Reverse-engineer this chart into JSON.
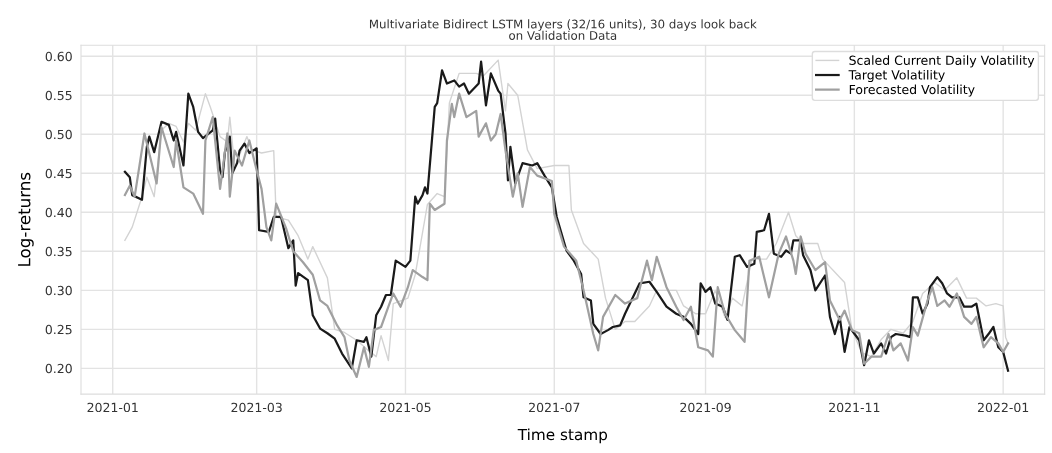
{
  "chart_data": {
    "type": "line",
    "title": "Multivariate Bidirect LSTM layers (32/16 units), 30 days look back\non Validation Data",
    "xlabel": "Time stamp",
    "ylabel": "Log-returns",
    "xlim": [
      "2020-12-19",
      "2022-01-18"
    ],
    "ylim": [
      0.167,
      0.614
    ],
    "xticks": [
      "2021-01",
      "2021-03",
      "2021-05",
      "2021-07",
      "2021-09",
      "2021-11",
      "2022-01"
    ],
    "yticks": [
      {
        "value": 0.2,
        "label": "0.20"
      },
      0.25,
      {
        "value": 0.3,
        "label": "0.30"
      },
      0.35,
      {
        "value": 0.4,
        "label": "0.40"
      },
      0.45,
      {
        "value": 0.5,
        "label": "0.50"
      },
      0.55,
      {
        "value": 0.6,
        "label": "0.60"
      }
    ],
    "grid": true,
    "legend": "top right",
    "line_style": "solid",
    "marker": "none",
    "series": [
      {
        "name": "Scaled Current Daily Volatility",
        "color": "#d3d3d3",
        "x": [
          "2021-01-06",
          "2021-01-09",
          "2021-01-13",
          "2021-01-15",
          "2021-01-18",
          "2021-01-21",
          "2021-01-24",
          "2021-01-27",
          "2021-01-30",
          "2021-02-01",
          "2021-02-04",
          "2021-02-08",
          "2021-02-10",
          "2021-02-14",
          "2021-02-17",
          "2021-02-18",
          "2021-02-20",
          "2021-02-25",
          "2021-02-27",
          "2021-03-03",
          "2021-03-08",
          "2021-03-09",
          "2021-03-14",
          "2021-03-18",
          "2021-03-22",
          "2021-03-24",
          "2021-03-30",
          "2021-04-02",
          "2021-04-06",
          "2021-04-11",
          "2021-04-15",
          "2021-04-19",
          "2021-04-21",
          "2021-04-24",
          "2021-04-26",
          "2021-05-02",
          "2021-05-05",
          "2021-05-10",
          "2021-05-14",
          "2021-05-17",
          "2021-05-19",
          "2021-05-23",
          "2021-05-30",
          "2021-06-02",
          "2021-06-08",
          "2021-06-11",
          "2021-06-12",
          "2021-06-16",
          "2021-06-20",
          "2021-06-24",
          "2021-07-01",
          "2021-07-07",
          "2021-07-08",
          "2021-07-13",
          "2021-07-19",
          "2021-07-22",
          "2021-07-26",
          "2021-07-30",
          "2021-08-03",
          "2021-08-09",
          "2021-08-12",
          "2021-08-20",
          "2021-08-23",
          "2021-08-28",
          "2021-09-01",
          "2021-09-05",
          "2021-09-09",
          "2021-09-12",
          "2021-09-16",
          "2021-09-20",
          "2021-09-26",
          "2021-09-30",
          "2021-10-05",
          "2021-10-08",
          "2021-10-11",
          "2021-10-17",
          "2021-10-19",
          "2021-10-25",
          "2021-10-28",
          "2021-10-31",
          "2021-11-04",
          "2021-11-08",
          "2021-11-12",
          "2021-11-16",
          "2021-11-21",
          "2021-11-25",
          "2021-11-29",
          "2021-12-04",
          "2021-12-08",
          "2021-12-13",
          "2021-12-17",
          "2021-12-21",
          "2021-12-25",
          "2021-12-29",
          "2022-01-01",
          "2022-01-02",
          "2022-01-03"
        ],
        "values": [
          0.364,
          0.381,
          0.42,
          0.445,
          0.42,
          0.505,
          0.514,
          0.51,
          0.49,
          0.514,
          0.505,
          0.552,
          0.535,
          0.497,
          0.49,
          0.522,
          0.458,
          0.497,
          0.48,
          0.476,
          0.479,
          0.394,
          0.39,
          0.37,
          0.34,
          0.356,
          0.316,
          0.25,
          0.246,
          0.236,
          0.225,
          0.215,
          0.242,
          0.21,
          0.283,
          0.29,
          0.32,
          0.41,
          0.424,
          0.42,
          0.54,
          0.578,
          0.578,
          0.575,
          0.595,
          0.53,
          0.565,
          0.55,
          0.48,
          0.456,
          0.46,
          0.46,
          0.403,
          0.36,
          0.34,
          0.29,
          0.25,
          0.26,
          0.26,
          0.28,
          0.3,
          0.3,
          0.28,
          0.27,
          0.27,
          0.3,
          0.265,
          0.29,
          0.28,
          0.34,
          0.34,
          0.36,
          0.4,
          0.37,
          0.36,
          0.36,
          0.34,
          0.32,
          0.31,
          0.25,
          0.22,
          0.215,
          0.237,
          0.25,
          0.245,
          0.26,
          0.296,
          0.31,
          0.3,
          0.316,
          0.29,
          0.29,
          0.28,
          0.283,
          0.28,
          0.24,
          0.232
        ]
      },
      {
        "name": "Target Volatility",
        "color": "#1a1a1a",
        "x": [
          "2021-01-06",
          "2021-01-08",
          "2021-01-09",
          "2021-01-13",
          "2021-01-15",
          "2021-01-16",
          "2021-01-18",
          "2021-01-21",
          "2021-01-24",
          "2021-01-26",
          "2021-01-27",
          "2021-01-30",
          "2021-02-01",
          "2021-02-03",
          "2021-02-05",
          "2021-02-07",
          "2021-02-11",
          "2021-02-12",
          "2021-02-14",
          "2021-02-15",
          "2021-02-16",
          "2021-02-18",
          "2021-02-19",
          "2021-02-21",
          "2021-02-22",
          "2021-02-24",
          "2021-02-26",
          "2021-03-01",
          "2021-03-02",
          "2021-03-06",
          "2021-03-08",
          "2021-03-11",
          "2021-03-14",
          "2021-03-16",
          "2021-03-17",
          "2021-03-18",
          "2021-03-22",
          "2021-03-24",
          "2021-03-27",
          "2021-03-30",
          "2021-04-02",
          "2021-04-05",
          "2021-04-09",
          "2021-04-11",
          "2021-04-14",
          "2021-04-15",
          "2021-04-17",
          "2021-04-19",
          "2021-04-21",
          "2021-04-23",
          "2021-04-25",
          "2021-04-27",
          "2021-05-01",
          "2021-05-03",
          "2021-05-05",
          "2021-05-06",
          "2021-05-08",
          "2021-05-09",
          "2021-05-10",
          "2021-05-13",
          "2021-05-14",
          "2021-05-16",
          "2021-05-18",
          "2021-05-21",
          "2021-05-23",
          "2021-05-25",
          "2021-05-27",
          "2021-05-31",
          "2021-06-01",
          "2021-06-03",
          "2021-06-05",
          "2021-06-08",
          "2021-06-09",
          "2021-06-11",
          "2021-06-12",
          "2021-06-13",
          "2021-06-15",
          "2021-06-18",
          "2021-06-22",
          "2021-06-24",
          "2021-06-27",
          "2021-06-30",
          "2021-07-02",
          "2021-07-06",
          "2021-07-09",
          "2021-07-12",
          "2021-07-13",
          "2021-07-16",
          "2021-07-17",
          "2021-07-20",
          "2021-07-23",
          "2021-07-25",
          "2021-07-28",
          "2021-07-30",
          "2021-08-01",
          "2021-08-05",
          "2021-08-09",
          "2021-08-12",
          "2021-08-16",
          "2021-08-20",
          "2021-08-23",
          "2021-08-26",
          "2021-08-29",
          "2021-08-30",
          "2021-09-01",
          "2021-09-03",
          "2021-09-05",
          "2021-09-08",
          "2021-09-10",
          "2021-09-13",
          "2021-09-15",
          "2021-09-18",
          "2021-09-21",
          "2021-09-22",
          "2021-09-25",
          "2021-09-27",
          "2021-09-29",
          "2021-10-02",
          "2021-10-04",
          "2021-10-06",
          "2021-10-07",
          "2021-10-10",
          "2021-10-11",
          "2021-10-14",
          "2021-10-16",
          "2021-10-20",
          "2021-10-22",
          "2021-10-24",
          "2021-10-26",
          "2021-10-28",
          "2021-10-30",
          "2021-11-03",
          "2021-11-05",
          "2021-11-07",
          "2021-11-09",
          "2021-11-12",
          "2021-11-14",
          "2021-11-16",
          "2021-11-18",
          "2021-11-22",
          "2021-11-24",
          "2021-11-25",
          "2021-11-27",
          "2021-11-29",
          "2021-12-01",
          "2021-12-02",
          "2021-12-05",
          "2021-12-07",
          "2021-12-09",
          "2021-12-11",
          "2021-12-14",
          "2021-12-16",
          "2021-12-19",
          "2021-12-21",
          "2021-12-24",
          "2021-12-26",
          "2021-12-28",
          "2021-12-30",
          "2022-01-01",
          "2022-01-03"
        ],
        "values": [
          0.452,
          0.445,
          0.422,
          0.416,
          0.484,
          0.497,
          0.477,
          0.516,
          0.512,
          0.492,
          0.503,
          0.46,
          0.552,
          0.535,
          0.503,
          0.495,
          0.505,
          0.52,
          0.454,
          0.445,
          0.477,
          0.497,
          0.45,
          0.463,
          0.479,
          0.488,
          0.476,
          0.482,
          0.377,
          0.375,
          0.394,
          0.394,
          0.354,
          0.364,
          0.306,
          0.322,
          0.313,
          0.268,
          0.251,
          0.245,
          0.238,
          0.219,
          0.2,
          0.236,
          0.234,
          0.24,
          0.215,
          0.268,
          0.279,
          0.294,
          0.294,
          0.338,
          0.33,
          0.338,
          0.42,
          0.411,
          0.422,
          0.432,
          0.424,
          0.535,
          0.54,
          0.582,
          0.565,
          0.569,
          0.561,
          0.565,
          0.552,
          0.565,
          0.593,
          0.537,
          0.578,
          0.556,
          0.552,
          0.501,
          0.441,
          0.484,
          0.437,
          0.463,
          0.46,
          0.463,
          0.447,
          0.432,
          0.394,
          0.351,
          0.338,
          0.321,
          0.291,
          0.287,
          0.257,
          0.244,
          0.249,
          0.253,
          0.255,
          0.27,
          0.283,
          0.309,
          0.311,
          0.298,
          0.279,
          0.27,
          0.266,
          0.257,
          0.244,
          0.309,
          0.298,
          0.304,
          0.283,
          0.279,
          0.262,
          0.343,
          0.345,
          0.33,
          0.334,
          0.375,
          0.377,
          0.398,
          0.347,
          0.343,
          0.351,
          0.347,
          0.364,
          0.364,
          0.345,
          0.326,
          0.3,
          0.319,
          0.266,
          0.244,
          0.266,
          0.221,
          0.253,
          0.236,
          0.204,
          0.236,
          0.219,
          0.232,
          0.219,
          0.24,
          0.244,
          0.242,
          0.24,
          0.291,
          0.291,
          0.27,
          0.283,
          0.304,
          0.317,
          0.309,
          0.296,
          0.291,
          0.291,
          0.279,
          0.279,
          0.283,
          0.236,
          0.244,
          0.253,
          0.227,
          0.221,
          0.197
        ]
      },
      {
        "name": "Forecasted Volatility",
        "color": "#a0a0a0",
        "x": [
          "2021-01-06",
          "2021-01-08",
          "2021-01-10",
          "2021-01-14",
          "2021-01-19",
          "2021-01-21",
          "2021-01-26",
          "2021-01-27",
          "2021-01-30",
          "2021-02-03",
          "2021-02-07",
          "2021-02-08",
          "2021-02-11",
          "2021-02-14",
          "2021-02-17",
          "2021-02-18",
          "2021-02-20",
          "2021-02-23",
          "2021-02-26",
          "2021-03-01",
          "2021-03-03",
          "2021-03-05",
          "2021-03-07",
          "2021-03-09",
          "2021-03-13",
          "2021-03-16",
          "2021-03-20",
          "2021-03-24",
          "2021-03-27",
          "2021-03-30",
          "2021-04-03",
          "2021-04-06",
          "2021-04-08",
          "2021-04-11",
          "2021-04-14",
          "2021-04-16",
          "2021-04-18",
          "2021-04-21",
          "2021-04-24",
          "2021-04-26",
          "2021-04-29",
          "2021-05-02",
          "2021-05-04",
          "2021-05-08",
          "2021-05-10",
          "2021-05-11",
          "2021-05-13",
          "2021-05-17",
          "2021-05-18",
          "2021-05-20",
          "2021-05-21",
          "2021-05-23",
          "2021-05-26",
          "2021-05-30",
          "2021-05-31",
          "2021-06-03",
          "2021-06-05",
          "2021-06-07",
          "2021-06-09",
          "2021-06-11",
          "2021-06-14",
          "2021-06-16",
          "2021-06-18",
          "2021-06-21",
          "2021-06-24",
          "2021-06-30",
          "2021-07-01",
          "2021-07-05",
          "2021-07-10",
          "2021-07-13",
          "2021-07-17",
          "2021-07-19",
          "2021-07-21",
          "2021-07-26",
          "2021-07-30",
          "2021-08-04",
          "2021-08-08",
          "2021-08-10",
          "2021-08-12",
          "2021-08-16",
          "2021-08-20",
          "2021-08-23",
          "2021-08-26",
          "2021-08-29",
          "2021-09-02",
          "2021-09-04",
          "2021-09-06",
          "2021-09-09",
          "2021-09-13",
          "2021-09-17",
          "2021-09-19",
          "2021-09-23",
          "2021-09-27",
          "2021-10-01",
          "2021-10-04",
          "2021-10-07",
          "2021-10-08",
          "2021-10-10",
          "2021-10-12",
          "2021-10-16",
          "2021-10-20",
          "2021-10-22",
          "2021-10-26",
          "2021-10-28",
          "2021-10-31",
          "2021-11-03",
          "2021-11-05",
          "2021-11-08",
          "2021-11-12",
          "2021-11-15",
          "2021-11-17",
          "2021-11-20",
          "2021-11-23",
          "2021-11-25",
          "2021-11-27",
          "2021-12-01",
          "2021-12-03",
          "2021-12-05",
          "2021-12-08",
          "2021-12-10",
          "2021-12-13",
          "2021-12-16",
          "2021-12-19",
          "2021-12-21",
          "2021-12-24",
          "2021-12-27",
          "2021-12-30",
          "2022-01-01",
          "2022-01-03"
        ],
        "values": [
          0.422,
          0.434,
          0.42,
          0.501,
          0.437,
          0.509,
          0.458,
          0.492,
          0.432,
          0.424,
          0.398,
          0.492,
          0.522,
          0.43,
          0.501,
          0.42,
          0.479,
          0.46,
          0.492,
          0.454,
          0.43,
          0.381,
          0.364,
          0.411,
          0.38,
          0.35,
          0.336,
          0.32,
          0.287,
          0.28,
          0.255,
          0.24,
          0.21,
          0.189,
          0.227,
          0.202,
          0.249,
          0.253,
          0.279,
          0.296,
          0.279,
          0.304,
          0.326,
          0.317,
          0.313,
          0.411,
          0.403,
          0.411,
          0.492,
          0.539,
          0.522,
          0.552,
          0.522,
          0.53,
          0.497,
          0.514,
          0.492,
          0.5,
          0.526,
          0.479,
          0.42,
          0.45,
          0.407,
          0.458,
          0.447,
          0.44,
          0.398,
          0.356,
          0.338,
          0.3,
          0.244,
          0.223,
          0.266,
          0.294,
          0.283,
          0.29,
          0.338,
          0.313,
          0.343,
          0.304,
          0.279,
          0.262,
          0.279,
          0.227,
          0.223,
          0.215,
          0.304,
          0.27,
          0.249,
          0.234,
          0.338,
          0.343,
          0.291,
          0.347,
          0.369,
          0.338,
          0.321,
          0.369,
          0.347,
          0.326,
          0.336,
          0.287,
          0.262,
          0.274,
          0.249,
          0.245,
          0.206,
          0.215,
          0.215,
          0.244,
          0.223,
          0.232,
          0.21,
          0.253,
          0.242,
          0.287,
          0.304,
          0.28,
          0.287,
          0.279,
          0.296,
          0.266,
          0.257,
          0.266,
          0.227,
          0.24,
          0.232,
          0.221,
          0.232
        ]
      }
    ]
  }
}
